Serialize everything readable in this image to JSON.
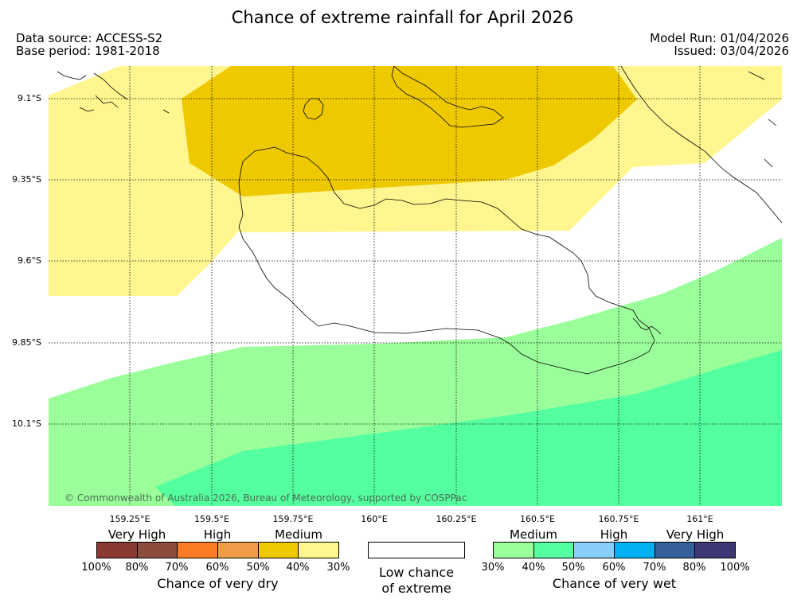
{
  "title": "Chance of extreme rainfall for April 2026",
  "meta": {
    "data_source": "Data source: ACCESS-S2",
    "base_period": "Base period: 1981-2018",
    "model_run": "Model Run: 01/04/2026",
    "issued": "Issued: 03/04/2026"
  },
  "map": {
    "lon_ticks": [
      "159.25°E",
      "159.5°E",
      "159.75°E",
      "160°E",
      "160.25°E",
      "160.5°E",
      "160.75°E",
      "161°E"
    ],
    "lat_ticks": [
      "9.1°S",
      "9.35°S",
      "9.6°S",
      "9.85°S",
      "10.1°S"
    ],
    "copyright": "© Commonwealth of Australia 2026, Bureau of Meteorology, supported by COSPPac"
  },
  "legend": {
    "dry": {
      "categories": [
        "Very High",
        "High",
        "Medium"
      ],
      "colors": [
        "#8b3a32",
        "#8b4c3b",
        "#fb7b25",
        "#ee9c48",
        "#eec900",
        "#fff68f"
      ],
      "labels": [
        "100%",
        "80%",
        "70%",
        "60%",
        "50%",
        "40%",
        "30%"
      ],
      "title": "Chance of very dry"
    },
    "low": {
      "line1": "Low chance",
      "line2": "of extreme"
    },
    "wet": {
      "categories": [
        "Medium",
        "High",
        "Very High"
      ],
      "colors": [
        "#9aff9a",
        "#54ff9f",
        "#87cefa",
        "#00b0f0",
        "#36609c",
        "#3d3874"
      ],
      "labels": [
        "30%",
        "40%",
        "50%",
        "60%",
        "70%",
        "80%",
        "100%"
      ],
      "title": "Chance of very wet"
    }
  }
}
